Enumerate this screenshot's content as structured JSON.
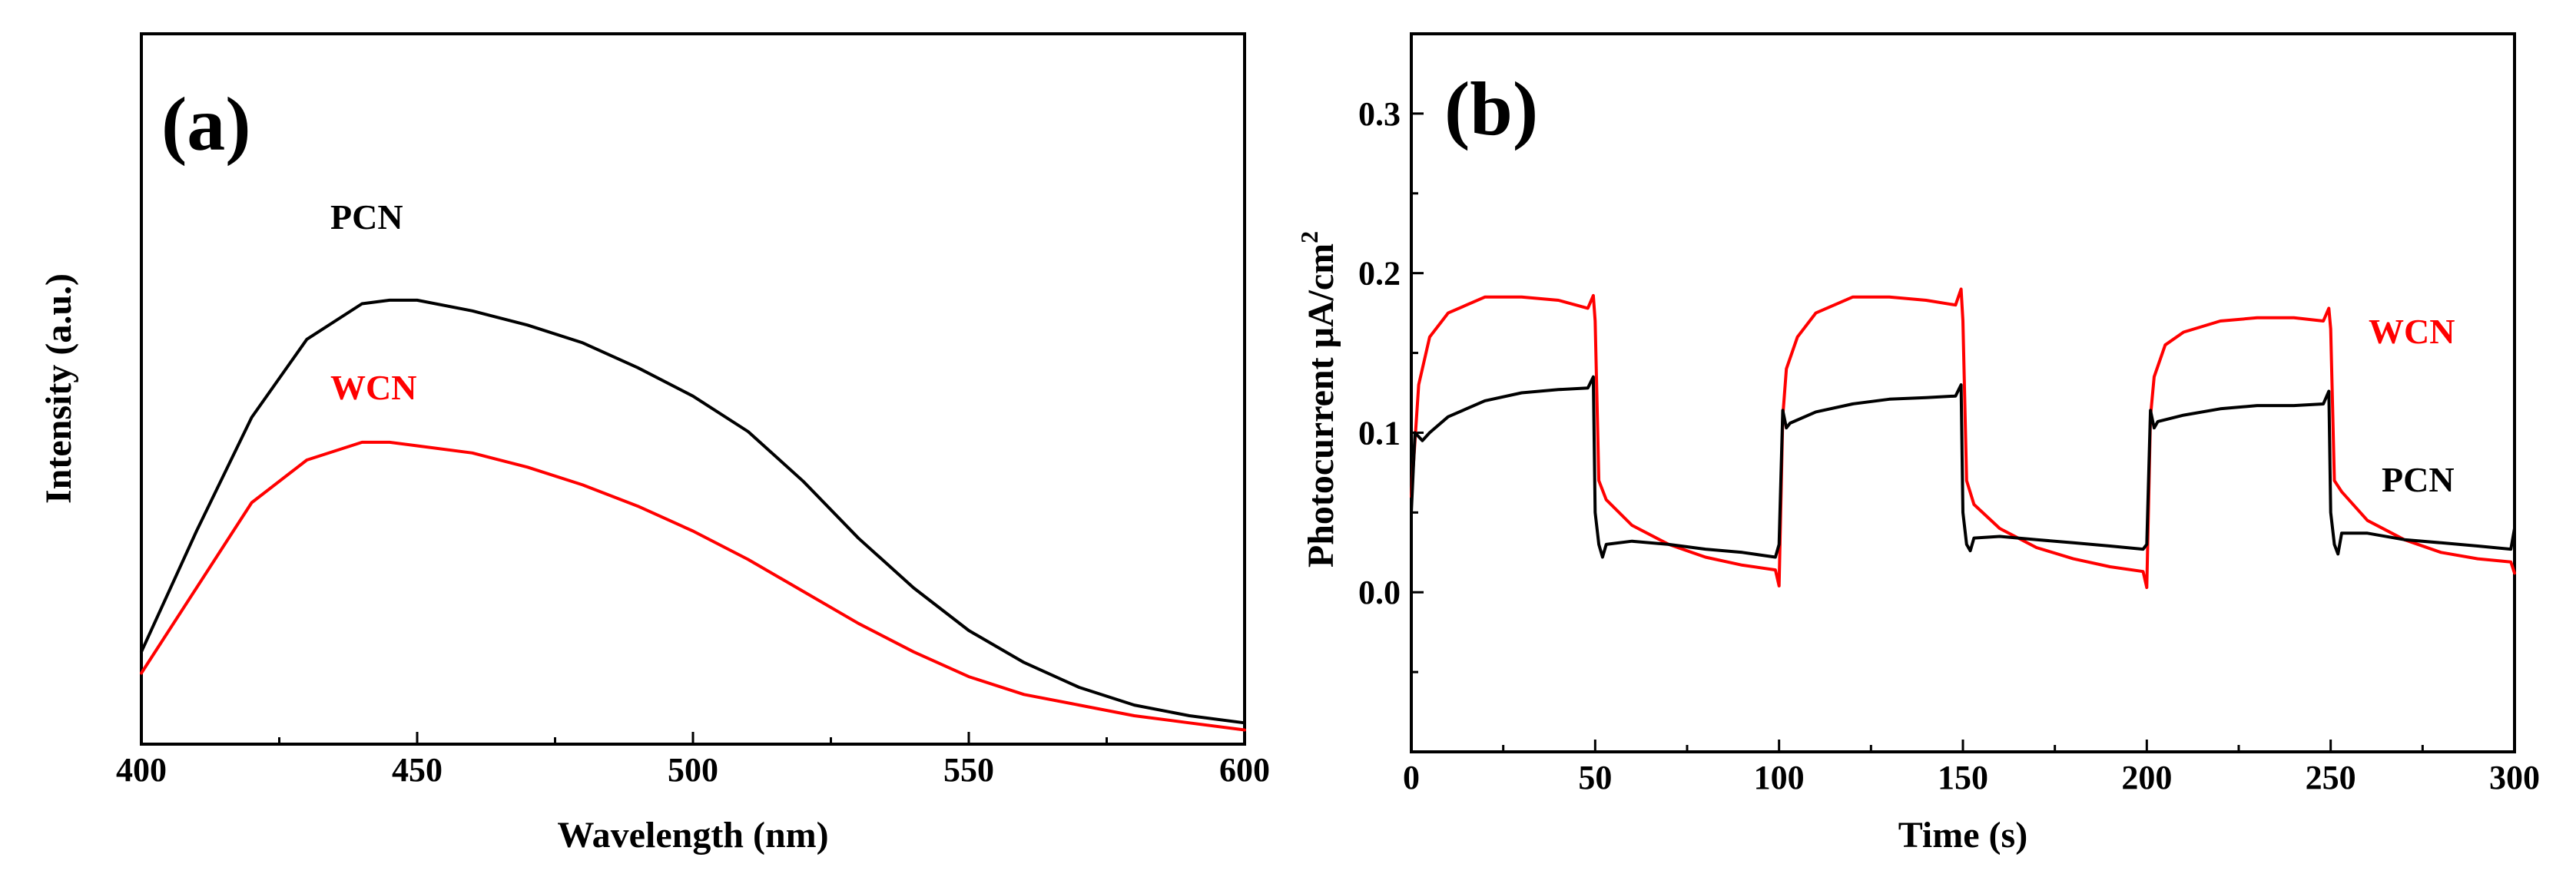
{
  "chart_data": [
    {
      "type": "line",
      "panel_label": "(a)",
      "xlabel": "Wavelength (nm)",
      "ylabel": "Intensity (a.u.)",
      "xlim": [
        400,
        600
      ],
      "ylim": [
        0,
        1.0
      ],
      "xticks": [
        "400",
        "450",
        "500",
        "550",
        "600"
      ],
      "y_tick_labels_shown": false,
      "series": [
        {
          "name": "PCN",
          "color": "#000000",
          "x": [
            400,
            410,
            420,
            430,
            440,
            445,
            450,
            460,
            470,
            480,
            490,
            500,
            510,
            520,
            530,
            540,
            550,
            560,
            570,
            580,
            590,
            600
          ],
          "y": [
            0.13,
            0.3,
            0.46,
            0.57,
            0.62,
            0.625,
            0.625,
            0.61,
            0.59,
            0.565,
            0.53,
            0.49,
            0.44,
            0.37,
            0.29,
            0.22,
            0.16,
            0.115,
            0.08,
            0.055,
            0.04,
            0.03
          ]
        },
        {
          "name": "WCN",
          "color": "#ff0000",
          "x": [
            400,
            410,
            420,
            430,
            440,
            445,
            450,
            460,
            470,
            480,
            490,
            500,
            510,
            520,
            530,
            540,
            550,
            560,
            570,
            580,
            590,
            600
          ],
          "y": [
            0.1,
            0.22,
            0.34,
            0.4,
            0.425,
            0.425,
            0.42,
            0.41,
            0.39,
            0.365,
            0.335,
            0.3,
            0.26,
            0.215,
            0.17,
            0.13,
            0.095,
            0.07,
            0.055,
            0.04,
            0.03,
            0.02
          ]
        }
      ]
    },
    {
      "type": "line",
      "panel_label": "(b)",
      "xlabel": "Time (s)",
      "ylabel": "Photocurrent μA/cm",
      "ylabel_superscript": "2",
      "xlim": [
        0,
        300
      ],
      "ylim": [
        -0.1,
        0.35
      ],
      "xticks": [
        "0",
        "50",
        "100",
        "150",
        "200",
        "250",
        "300"
      ],
      "yticks": [
        "0.0",
        "0.1",
        "0.2",
        "0.3"
      ],
      "series": [
        {
          "name": "WCN",
          "color": "#ff0000",
          "x": [
            0,
            2,
            5,
            10,
            20,
            30,
            40,
            48,
            49.5,
            50,
            51,
            53,
            60,
            70,
            80,
            90,
            99,
            100,
            101,
            102,
            105,
            110,
            120,
            130,
            140,
            148,
            149.5,
            150,
            151,
            153,
            160,
            170,
            180,
            190,
            199,
            200,
            201,
            202,
            205,
            210,
            220,
            230,
            240,
            248,
            249.5,
            250,
            251,
            253,
            260,
            270,
            280,
            290,
            299,
            300
          ],
          "y": [
            0.06,
            0.13,
            0.16,
            0.175,
            0.185,
            0.185,
            0.183,
            0.178,
            0.186,
            0.17,
            0.07,
            0.058,
            0.042,
            0.03,
            0.022,
            0.017,
            0.014,
            0.004,
            0.11,
            0.14,
            0.16,
            0.175,
            0.185,
            0.185,
            0.183,
            0.18,
            0.19,
            0.17,
            0.07,
            0.055,
            0.04,
            0.028,
            0.021,
            0.016,
            0.013,
            0.003,
            0.11,
            0.135,
            0.155,
            0.163,
            0.17,
            0.172,
            0.172,
            0.17,
            0.178,
            0.165,
            0.07,
            0.063,
            0.045,
            0.033,
            0.025,
            0.021,
            0.019,
            0.012
          ]
        },
        {
          "name": "PCN",
          "color": "#000000",
          "x": [
            0,
            1,
            3,
            5,
            10,
            20,
            30,
            40,
            48,
            49.5,
            50,
            51,
            52,
            53,
            60,
            70,
            80,
            90,
            99,
            100,
            101,
            102,
            103,
            110,
            120,
            130,
            140,
            148,
            149.5,
            150,
            151,
            152,
            153,
            160,
            170,
            180,
            190,
            199,
            200,
            201,
            202,
            203,
            210,
            220,
            230,
            240,
            248,
            249.5,
            250,
            251,
            252,
            253,
            260,
            270,
            280,
            290,
            299,
            300
          ],
          "y": [
            0.05,
            0.1,
            0.095,
            0.1,
            0.11,
            0.12,
            0.125,
            0.127,
            0.128,
            0.135,
            0.05,
            0.03,
            0.022,
            0.03,
            0.032,
            0.03,
            0.027,
            0.025,
            0.022,
            0.03,
            0.114,
            0.103,
            0.106,
            0.113,
            0.118,
            0.121,
            0.122,
            0.123,
            0.13,
            0.05,
            0.03,
            0.026,
            0.034,
            0.035,
            0.033,
            0.031,
            0.029,
            0.027,
            0.03,
            0.114,
            0.103,
            0.107,
            0.111,
            0.115,
            0.117,
            0.117,
            0.118,
            0.126,
            0.05,
            0.03,
            0.024,
            0.037,
            0.037,
            0.033,
            0.031,
            0.029,
            0.027,
            0.04
          ]
        }
      ]
    }
  ]
}
